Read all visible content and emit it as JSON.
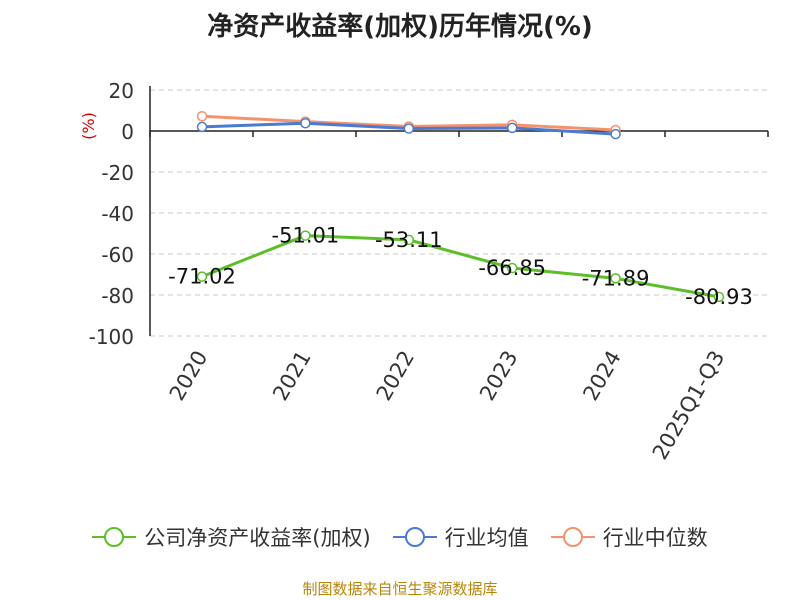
{
  "title": "净资产收益率(加权)历年情况(%)",
  "source": "制图数据来自恒生聚源数据库",
  "chart_data": {
    "type": "line",
    "title": "净资产收益率(加权)历年情况(%)",
    "ylabel": "(%)",
    "xlabel": "",
    "categories": [
      "2020",
      "2021",
      "2022",
      "2023",
      "2024",
      "2025Q1-Q3"
    ],
    "ylim": [
      -100,
      20
    ],
    "yticks": [
      20,
      0,
      -20,
      -40,
      -60,
      -80,
      -100
    ],
    "grid": true,
    "legend_position": "bottom",
    "series": [
      {
        "name": "公司净资产收益率(加权)",
        "color": "#5cbf2a",
        "values": [
          -71.02,
          -51.01,
          -53.11,
          -66.85,
          -71.89,
          -80.93
        ],
        "labels": [
          "-71.02",
          "-51.01",
          "-53.11",
          "-66.85",
          "-71.89",
          "-80.93"
        ]
      },
      {
        "name": "行业均值",
        "color": "#4a7bd0",
        "values": [
          2.0,
          3.8,
          1.2,
          1.5,
          -1.5,
          null
        ]
      },
      {
        "name": "行业中位数",
        "color": "#f4926b",
        "values": [
          7.2,
          4.6,
          2.2,
          3.0,
          0.5,
          null
        ]
      }
    ]
  }
}
